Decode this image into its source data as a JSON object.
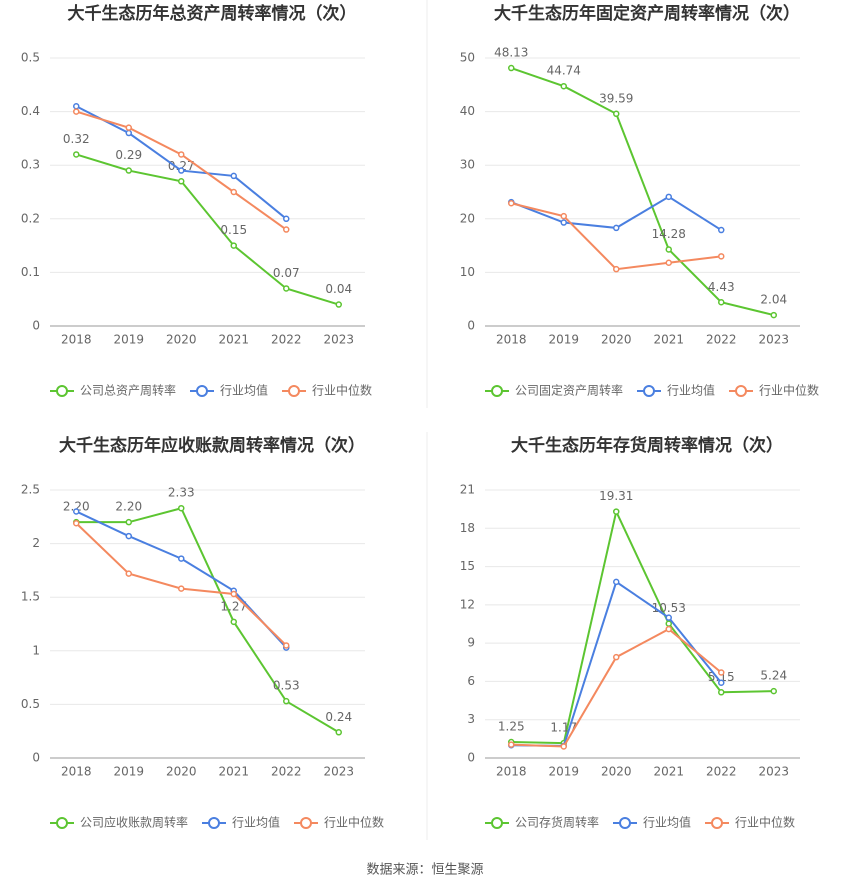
{
  "chart_data": [
    {
      "type": "line",
      "title": "大千生态历年总资产周转率情况（次）",
      "categories": [
        "2018",
        "2019",
        "2020",
        "2021",
        "2022",
        "2023"
      ],
      "ylim": [
        0,
        0.5
      ],
      "yticks": [
        0,
        0.1,
        0.2,
        0.3,
        0.4,
        0.5
      ],
      "grid": true,
      "series": [
        {
          "name": "公司总资产周转率",
          "color": "#5cc531",
          "values": [
            0.32,
            0.29,
            0.27,
            0.15,
            0.07,
            0.04
          ],
          "value_labels": [
            "0.32",
            "0.29",
            "0.27",
            "0.15",
            "0.07",
            "0.04"
          ]
        },
        {
          "name": "行业均值",
          "color": "#4a7fe0",
          "values": [
            0.41,
            0.36,
            0.29,
            0.28,
            0.2,
            null
          ]
        },
        {
          "name": "行业中位数",
          "color": "#f4895f",
          "values": [
            0.4,
            0.37,
            0.32,
            0.25,
            0.18,
            null
          ]
        }
      ]
    },
    {
      "type": "line",
      "title": "大千生态历年固定资产周转率情况（次）",
      "categories": [
        "2018",
        "2019",
        "2020",
        "2021",
        "2022",
        "2023"
      ],
      "ylim": [
        0,
        50
      ],
      "yticks": [
        0,
        10,
        20,
        30,
        40,
        50
      ],
      "grid": true,
      "series": [
        {
          "name": "公司固定资产周转率",
          "color": "#5cc531",
          "values": [
            48.13,
            44.74,
            39.59,
            14.28,
            4.43,
            2.04
          ],
          "value_labels": [
            "48.13",
            "44.74",
            "39.59",
            "14.28",
            "4.43",
            "2.04"
          ]
        },
        {
          "name": "行业均值",
          "color": "#4a7fe0",
          "values": [
            23.1,
            19.3,
            18.3,
            24.1,
            17.9,
            null
          ]
        },
        {
          "name": "行业中位数",
          "color": "#f4895f",
          "values": [
            22.9,
            20.5,
            10.6,
            11.8,
            13.0,
            null
          ]
        }
      ]
    },
    {
      "type": "line",
      "title": "大千生态历年应收账款周转率情况（次）",
      "categories": [
        "2018",
        "2019",
        "2020",
        "2021",
        "2022",
        "2023"
      ],
      "ylim": [
        0,
        2.5
      ],
      "yticks": [
        0,
        0.5,
        1,
        1.5,
        2,
        2.5
      ],
      "grid": true,
      "series": [
        {
          "name": "公司应收账款周转率",
          "color": "#5cc531",
          "values": [
            2.2,
            2.2,
            2.33,
            1.27,
            0.53,
            0.24
          ],
          "value_labels": [
            "2.20",
            "2.20",
            "2.33",
            "1.27",
            "0.53",
            "0.24"
          ]
        },
        {
          "name": "行业均值",
          "color": "#4a7fe0",
          "values": [
            2.3,
            2.07,
            1.86,
            1.56,
            1.03,
            null
          ]
        },
        {
          "name": "行业中位数",
          "color": "#f4895f",
          "values": [
            2.19,
            1.72,
            1.58,
            1.53,
            1.05,
            null
          ]
        }
      ]
    },
    {
      "type": "line",
      "title": "大千生态历年存货周转率情况（次）",
      "categories": [
        "2018",
        "2019",
        "2020",
        "2021",
        "2022",
        "2023"
      ],
      "ylim": [
        0,
        21
      ],
      "yticks": [
        0,
        3,
        6,
        9,
        12,
        15,
        18,
        21
      ],
      "grid": true,
      "series": [
        {
          "name": "公司存货周转率",
          "color": "#5cc531",
          "values": [
            1.25,
            1.17,
            19.31,
            10.53,
            5.15,
            5.24
          ],
          "value_labels": [
            "1.25",
            "1.17",
            "19.31",
            "10.53",
            "5.15",
            "5.24"
          ]
        },
        {
          "name": "行业均值",
          "color": "#4a7fe0",
          "values": [
            1.0,
            0.95,
            13.8,
            11.0,
            5.9,
            null
          ]
        },
        {
          "name": "行业中位数",
          "color": "#f4895f",
          "values": [
            1.05,
            0.9,
            7.9,
            10.1,
            6.7,
            null
          ]
        }
      ]
    }
  ],
  "source": "数据来源：恒生聚源"
}
